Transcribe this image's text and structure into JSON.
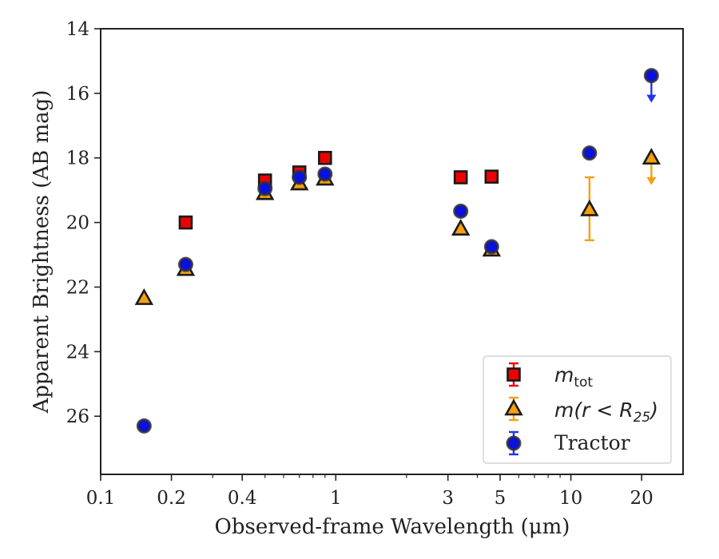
{
  "chart_data": {
    "type": "scatter",
    "xlabel": "Observed-frame Wavelength (μm)",
    "ylabel": "Apparent Brightness (AB mag)",
    "x_scale": "log",
    "xlim": [
      0.1,
      30
    ],
    "ylim": [
      27.8,
      14
    ],
    "y_inverted": true,
    "x_ticks": [
      0.1,
      0.2,
      0.4,
      1,
      3,
      5,
      10,
      20
    ],
    "x_tick_labels": [
      "0.1",
      "0.2",
      "0.4",
      "1",
      "3",
      "5",
      "10",
      "20"
    ],
    "y_ticks": [
      14,
      16,
      18,
      20,
      22,
      24,
      26
    ],
    "y_tick_labels": [
      "14",
      "16",
      "18",
      "20",
      "22",
      "24",
      "26"
    ],
    "grid": false,
    "legend_position": "bottom-right",
    "series": [
      {
        "name": "m_tot",
        "legend_main": "m",
        "legend_sub": "tot",
        "marker": "square",
        "color": "#ee0000",
        "edge_color": "#1a1a1a",
        "error_color": "#ee0000",
        "points": [
          {
            "x": 0.23,
            "y": 20.0
          },
          {
            "x": 0.5,
            "y": 18.7
          },
          {
            "x": 0.7,
            "y": 18.45
          },
          {
            "x": 0.9,
            "y": 18.0
          },
          {
            "x": 3.4,
            "y": 18.6
          },
          {
            "x": 4.6,
            "y": 18.58
          }
        ]
      },
      {
        "name": "m(r < R25)",
        "legend_main": "m(r < R",
        "legend_sub": "25",
        "legend_tail": ")",
        "marker": "triangle",
        "color": "#f5a00f",
        "edge_color": "#1a1a1a",
        "error_color": "#f5a00f",
        "points": [
          {
            "x": 0.153,
            "y": 22.35
          },
          {
            "x": 0.23,
            "y": 21.45
          },
          {
            "x": 0.5,
            "y": 19.1
          },
          {
            "x": 0.7,
            "y": 18.8
          },
          {
            "x": 0.9,
            "y": 18.65
          },
          {
            "x": 3.4,
            "y": 20.2
          },
          {
            "x": 4.6,
            "y": 20.85
          },
          {
            "x": 12,
            "y": 19.6,
            "yerr": [
              20.55,
              18.6
            ]
          },
          {
            "x": 22,
            "y": 18.0,
            "upper_limit": true
          }
        ]
      },
      {
        "name": "Tractor",
        "legend_main": "Tractor",
        "marker": "circle",
        "color": "#0a10e0",
        "edge_color": "#333333",
        "error_color": "#2233ee",
        "points": [
          {
            "x": 0.153,
            "y": 26.3
          },
          {
            "x": 0.23,
            "y": 21.3
          },
          {
            "x": 0.5,
            "y": 18.95
          },
          {
            "x": 0.7,
            "y": 18.6
          },
          {
            "x": 0.9,
            "y": 18.5
          },
          {
            "x": 3.4,
            "y": 19.65
          },
          {
            "x": 4.6,
            "y": 20.75
          },
          {
            "x": 12,
            "y": 17.85
          },
          {
            "x": 22,
            "y": 15.45,
            "upper_limit": true
          }
        ]
      }
    ]
  }
}
